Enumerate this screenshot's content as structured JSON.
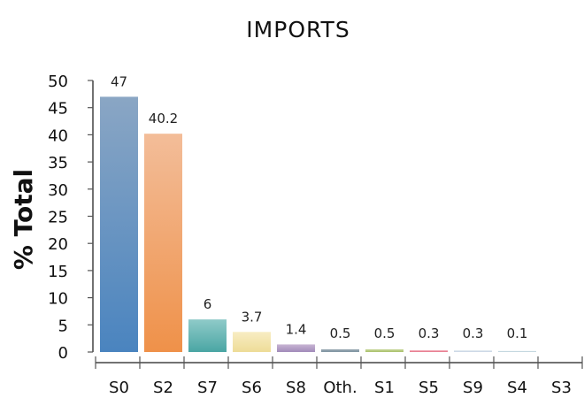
{
  "chart_data": {
    "type": "bar",
    "title": "IMPORTS",
    "xlabel": "",
    "ylabel": "% Total",
    "ylim": [
      0,
      50
    ],
    "yticks": [
      0,
      5,
      10,
      15,
      20,
      25,
      30,
      35,
      40,
      45,
      50
    ],
    "categories": [
      "S0",
      "S2",
      "S7",
      "S6",
      "S8",
      "Oth.",
      "S1",
      "S5",
      "S9",
      "S4",
      "S3"
    ],
    "values": [
      47,
      40.2,
      6,
      3.7,
      1.4,
      0.5,
      0.5,
      0.3,
      0.3,
      0.1,
      null
    ],
    "data_labels": [
      "47",
      "40.2",
      "6",
      "3.7",
      "1.4",
      "0.5",
      "0.5",
      "0.3",
      "0.3",
      "0.1",
      ""
    ],
    "colors": [
      [
        "#8aa6c4",
        "#4a84bf"
      ],
      [
        "#f3bd99",
        "#ef9149"
      ],
      [
        "#8fcac8",
        "#4aa6a4"
      ],
      [
        "#f8edc3",
        "#eedc97"
      ],
      [
        "#c8b4d3",
        "#a28bb9"
      ],
      [
        "#9aaab4",
        "#7f93a1"
      ],
      [
        "#c9d89b",
        "#a7c06a"
      ],
      [
        "#f1a2b0",
        "#e57488"
      ],
      [
        "#dfe7ef",
        "#c7d4e2"
      ],
      [
        "#d5e4ea",
        "#b9cfd8"
      ],
      [
        "#eeeeee",
        "#dddddd"
      ]
    ],
    "grid": false
  }
}
